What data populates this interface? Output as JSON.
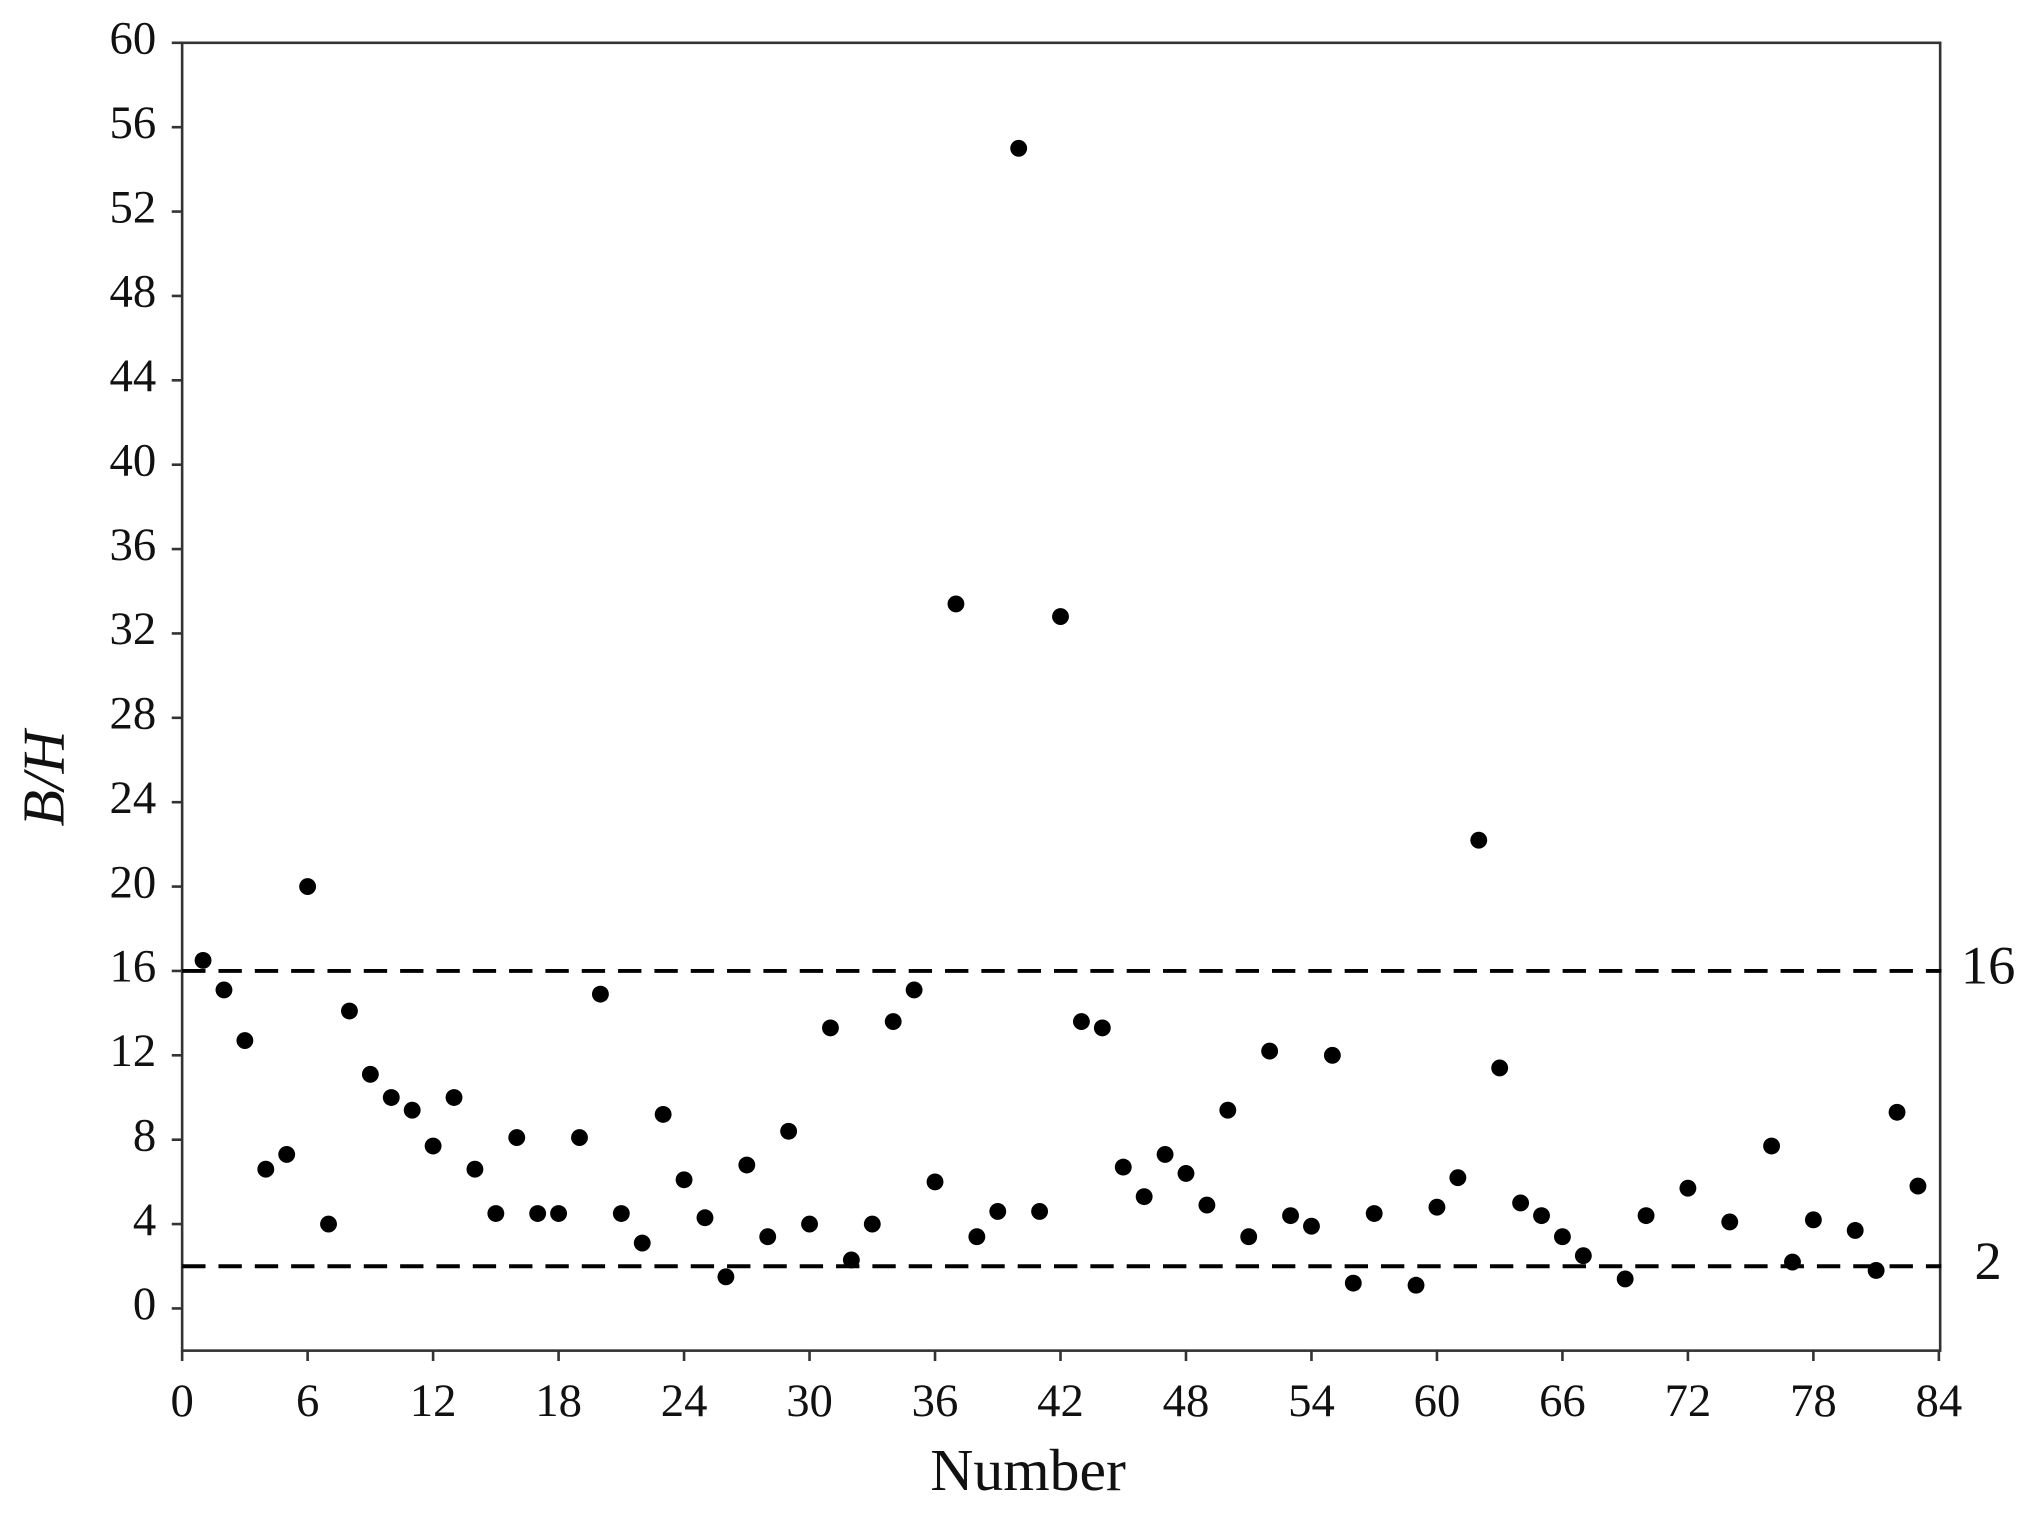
{
  "chart_data": {
    "type": "scatter",
    "x_label": "Number",
    "y_label": "B/H",
    "xlim": [
      0,
      84
    ],
    "xticks": [
      0,
      6,
      12,
      18,
      24,
      30,
      36,
      42,
      48,
      54,
      60,
      66,
      72,
      78,
      84
    ],
    "ylim": [
      -2,
      60
    ],
    "yticks": [
      0,
      4,
      8,
      12,
      16,
      20,
      24,
      28,
      32,
      36,
      40,
      44,
      48,
      52,
      56,
      60
    ],
    "hlines": [
      16,
      2
    ],
    "color": "#000000",
    "x": [
      1,
      2,
      3,
      4,
      5,
      6,
      7,
      8,
      9,
      10,
      11,
      12,
      13,
      14,
      15,
      16,
      17,
      18,
      19,
      20,
      21,
      22,
      23,
      24,
      25,
      26,
      27,
      28,
      29,
      30,
      31,
      32,
      33,
      34,
      35,
      36,
      37,
      38,
      39,
      40,
      41,
      42,
      43,
      44,
      45,
      46,
      47,
      48,
      49,
      50,
      51,
      52,
      53,
      54,
      55,
      56,
      57,
      59,
      60,
      61,
      62,
      63,
      64,
      65,
      66,
      67,
      69,
      70,
      72,
      74,
      76,
      77,
      78,
      80,
      81,
      82,
      83
    ],
    "values": [
      16.5,
      15.1,
      12.7,
      6.6,
      7.3,
      20.0,
      4.0,
      14.1,
      11.1,
      10.0,
      9.4,
      7.7,
      10.0,
      6.6,
      4.5,
      8.1,
      4.5,
      4.5,
      8.1,
      14.9,
      4.5,
      3.1,
      9.2,
      6.1,
      4.3,
      1.5,
      6.8,
      3.4,
      8.4,
      4.0,
      13.3,
      2.3,
      4.0,
      13.6,
      15.1,
      6.0,
      33.4,
      3.4,
      4.6,
      55.0,
      4.6,
      32.8,
      13.6,
      13.3,
      6.7,
      5.3,
      7.3,
      6.4,
      4.9,
      9.4,
      3.4,
      12.2,
      4.4,
      3.9,
      12.0,
      1.2,
      4.5,
      1.1,
      4.8,
      6.2,
      22.2,
      11.4,
      5.0,
      4.4,
      3.4,
      2.5,
      1.4,
      4.4,
      5.7,
      4.1,
      7.7,
      2.2,
      4.2,
      3.7,
      1.8,
      9.3,
      5.8
    ]
  }
}
